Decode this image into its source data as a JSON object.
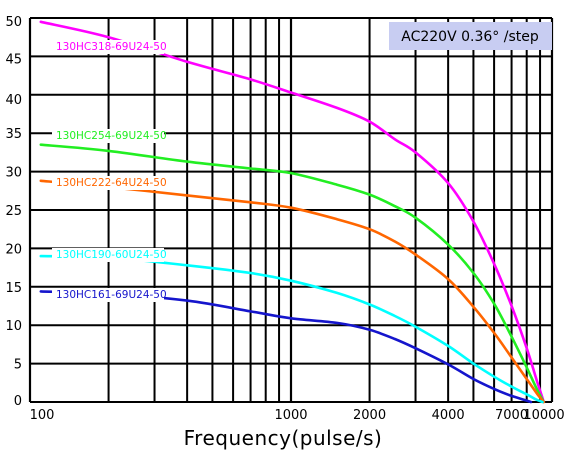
{
  "chart_data": {
    "type": "line",
    "title": "",
    "xlabel": "Frequency(pulse/s)",
    "ylabel": "",
    "x_scale": "log",
    "xlim": [
      100,
      10000
    ],
    "ylim": [
      0,
      50
    ],
    "grid": true,
    "annotation": "AC220V 0.36°  /step",
    "annotation_bg": "#c8cdf2",
    "x_ticks": [
      {
        "value": 100,
        "label": "100"
      },
      {
        "value": 1000,
        "label": "1000"
      },
      {
        "value": 2000,
        "label": "2000"
      },
      {
        "value": 4000,
        "label": "4000"
      },
      {
        "value": 7000,
        "label": "7000"
      },
      {
        "value": 10000,
        "label": "10000"
      }
    ],
    "y_ticks": [
      0,
      5,
      10,
      15,
      20,
      25,
      30,
      35,
      40,
      45,
      50
    ],
    "series": [
      {
        "name": "130HC318-69U24-50",
        "color": "#ff00ff",
        "x": [
          110,
          200,
          400,
          700,
          1000,
          1500,
          2000,
          2500,
          3000,
          4000,
          5000,
          6000,
          7000,
          8000,
          8800,
          9300
        ],
        "y": [
          49.5,
          47.5,
          44.3,
          42.0,
          40.3,
          38.3,
          36.5,
          34.2,
          32.5,
          28.5,
          23.5,
          18.0,
          12.5,
          7.0,
          2.5,
          0
        ]
      },
      {
        "name": "130HC254-69U24-50",
        "color": "#22ee22",
        "x": [
          110,
          200,
          400,
          700,
          1000,
          1500,
          2000,
          2500,
          3000,
          4000,
          5000,
          6000,
          7000,
          8000,
          8800,
          9300
        ],
        "y": [
          33.5,
          32.7,
          31.3,
          30.4,
          29.8,
          28.3,
          27.0,
          25.5,
          24.0,
          20.5,
          16.8,
          12.8,
          8.5,
          4.5,
          1.5,
          0
        ]
      },
      {
        "name": "130HC222-64U24-50",
        "color": "#ff6600",
        "x": [
          110,
          200,
          400,
          700,
          1000,
          1500,
          2000,
          2500,
          3000,
          4000,
          5000,
          6000,
          7000,
          8000,
          8800,
          9300
        ],
        "y": [
          28.8,
          28.0,
          26.9,
          26.0,
          25.3,
          23.8,
          22.5,
          20.9,
          19.2,
          16.0,
          12.4,
          9.0,
          5.8,
          3.0,
          1.0,
          0
        ]
      },
      {
        "name": "130HC190-60U24-50",
        "color": "#00ffff",
        "x": [
          110,
          200,
          400,
          700,
          1000,
          1500,
          2000,
          2500,
          3000,
          4000,
          5000,
          6000,
          7000,
          8000,
          8600,
          9200
        ],
        "y": [
          19.0,
          18.8,
          17.8,
          16.8,
          15.8,
          14.2,
          12.7,
          11.2,
          9.8,
          7.3,
          5.0,
          3.3,
          2.0,
          1.0,
          0.4,
          0
        ]
      },
      {
        "name": "130HC161-69U24-50",
        "color": "#1515cc",
        "x": [
          110,
          200,
          400,
          700,
          1000,
          1500,
          2000,
          2500,
          3000,
          4000,
          5000,
          6000,
          7000,
          7800,
          8300
        ],
        "y": [
          14.4,
          14.1,
          13.2,
          11.8,
          10.9,
          10.3,
          9.4,
          8.2,
          7.0,
          4.9,
          3.0,
          1.7,
          0.8,
          0.3,
          0
        ]
      }
    ]
  }
}
